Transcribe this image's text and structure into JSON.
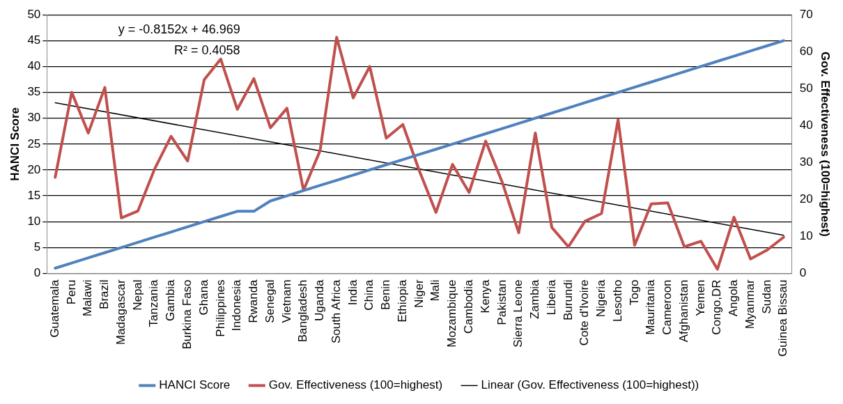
{
  "chart_data": {
    "type": "line",
    "categories": [
      "Guatemala",
      "Peru",
      "Malawi",
      "Brazil",
      "Madagascar",
      "Nepal",
      "Tanzania",
      "Gambia",
      "Burkina Faso",
      "Ghana",
      "Philippines",
      "Indonesia",
      "Rwanda",
      "Senegal",
      "Vietnam",
      "Bangladesh",
      "Uganda",
      "South Africa",
      "India",
      "China",
      "Benin",
      "Ethiopia",
      "Niger",
      "Mali",
      "Mozambique",
      "Cambodia",
      "Kenya",
      "Pakistan",
      "Sierra Leone",
      "Zambia",
      "Liberia",
      "Burundi",
      "Cote d'Ivoire",
      "Nigeria",
      "Lesotho",
      "Togo",
      "Mauritania",
      "Cameroon",
      "Afghanistan",
      "Yemen",
      "Congo,DR",
      "Angola",
      "Myanmar",
      "Sudan",
      "Guinea Bissau"
    ],
    "series": [
      {
        "name": "HANCI Score",
        "color": "#4f81bd",
        "values": [
          1,
          2,
          3,
          4,
          5,
          6,
          7,
          8,
          9,
          10,
          11,
          12,
          12,
          14,
          15,
          16,
          17,
          18,
          19,
          20,
          21,
          22,
          23,
          24,
          25,
          26,
          27,
          28,
          29,
          30,
          31,
          32,
          33,
          34,
          35,
          36,
          37,
          38,
          39,
          40,
          41,
          42,
          43,
          44,
          45
        ]
      },
      {
        "name": "Gov. Effectiveness (100=highest)",
        "color": "#c0504d",
        "axis": "y2",
        "values": [
          26,
          49,
          38,
          50.3,
          15,
          16.9,
          28.2,
          37.1,
          30.4,
          52.4,
          58,
          44.4,
          52.7,
          39.4,
          44.7,
          22.5,
          33.2,
          63.9,
          47.5,
          56,
          36.6,
          40.3,
          27.7,
          16.5,
          29.5,
          21.9,
          35.8,
          24.7,
          11,
          38,
          12.4,
          7.2,
          14.1,
          16.2,
          41.6,
          7.6,
          18.8,
          19.1,
          7.2,
          8.7,
          1.1,
          15.2,
          3.9,
          6.3,
          9.8
        ]
      },
      {
        "name": "Linear (Gov. Effectiveness (100=highest))",
        "color": "#000000",
        "axis": "y2",
        "x": [
          "Guatemala",
          "Guinea Bissau"
        ],
        "values": [
          46.2,
          10.3
        ]
      }
    ],
    "ylabel": "HANCI Score",
    "y2label": "Gov. Effectiveness (100=highest)",
    "ylim": [
      0,
      50
    ],
    "yticks": [
      0,
      5,
      10,
      15,
      20,
      25,
      30,
      35,
      40,
      45,
      50
    ],
    "y2lim": [
      0,
      70
    ],
    "y2ticks": [
      0,
      10,
      20,
      30,
      40,
      50,
      60,
      70
    ],
    "annotations": [
      "y = -0.8152x + 46.969",
      "R² = 0.4058"
    ],
    "grid": "y",
    "legend": "bottom",
    "marker": "none",
    "line_style": "solid"
  }
}
